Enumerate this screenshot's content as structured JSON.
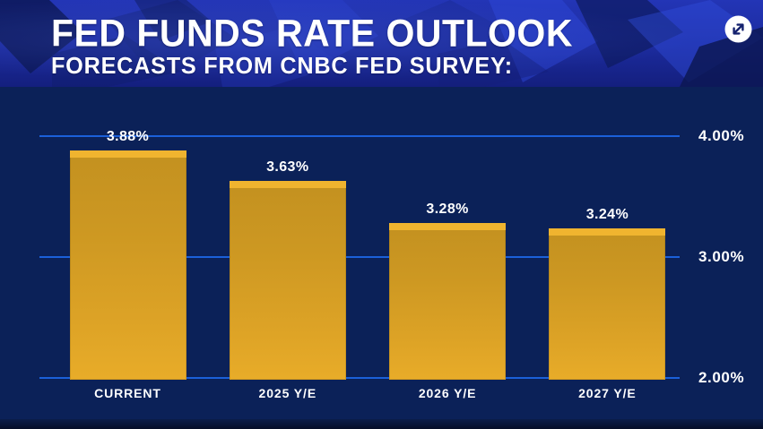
{
  "header": {
    "title": "FED FUNDS RATE OUTLOOK",
    "subtitle": "FORECASTS FROM CNBC FED SURVEY:"
  },
  "controls": {
    "expand_button": "expand-arrows-icon"
  },
  "colors": {
    "header_bg": "#1e2da3",
    "chart_bg": "#0b2158",
    "gridline": "#1b60d9",
    "bar_body": "#d59e24",
    "bar_cap": "#f0b42f",
    "label_text": "#ffffff",
    "expand_icon_arrows": "#14216e",
    "footer_bg": "#071232"
  },
  "chart_data": {
    "type": "bar",
    "title": "FED FUNDS RATE OUTLOOK",
    "subtitle": "FORECASTS FROM CNBC FED SURVEY:",
    "categories": [
      "CURRENT",
      "2025 Y/E",
      "2026 Y/E",
      "2027 Y/E"
    ],
    "values": [
      3.88,
      3.63,
      3.28,
      3.24
    ],
    "value_labels": [
      "3.88%",
      "3.63%",
      "3.28%",
      "3.24%"
    ],
    "xlabel": "",
    "ylabel": "",
    "ylim": [
      2.0,
      4.2
    ],
    "yticks": [
      {
        "value": 4.0,
        "label": "4.00%"
      },
      {
        "value": 3.0,
        "label": "3.00%"
      },
      {
        "value": 2.0,
        "label": "2.00%"
      }
    ],
    "grid": true,
    "legend": false,
    "gridline_color": "#1b60d9",
    "bar_color": "#d59e24"
  }
}
